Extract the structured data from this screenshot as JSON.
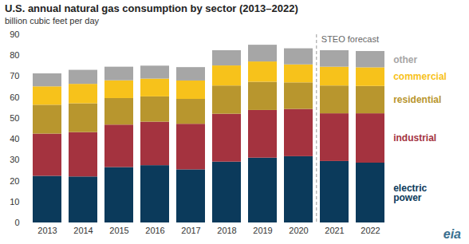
{
  "chart_data": {
    "type": "bar",
    "title": "U.S. annual natural gas consumption by sector (2013–2022)",
    "subtitle": "billion cubic feet per day",
    "categories": [
      "2013",
      "2014",
      "2015",
      "2016",
      "2017",
      "2018",
      "2019",
      "2020",
      "2021",
      "2022"
    ],
    "series": [
      {
        "name": "electric power",
        "color": "#0b3a5b",
        "values": [
          22.3,
          22.0,
          26.5,
          27.4,
          25.4,
          29.1,
          31.0,
          31.7,
          29.4,
          28.6
        ]
      },
      {
        "name": "industrial",
        "color": "#a4333f",
        "values": [
          20.2,
          21.2,
          20.3,
          20.8,
          21.8,
          22.9,
          22.8,
          22.6,
          22.8,
          23.6
        ]
      },
      {
        "name": "residential",
        "color": "#b8962e",
        "values": [
          13.8,
          13.8,
          12.7,
          12.1,
          11.9,
          13.5,
          13.5,
          12.7,
          13.3,
          13.1
        ]
      },
      {
        "name": "commercial",
        "color": "#f7c21b",
        "values": [
          8.8,
          9.3,
          8.5,
          8.5,
          8.8,
          9.6,
          9.7,
          8.6,
          9.0,
          8.9
        ]
      },
      {
        "name": "other",
        "color": "#a6a6a6",
        "values": [
          6.2,
          6.7,
          6.5,
          6.2,
          6.4,
          7.3,
          8.0,
          7.7,
          7.9,
          7.8
        ]
      }
    ],
    "stacked": true,
    "ylim": [
      0,
      90
    ],
    "yticks": [
      0,
      10,
      20,
      30,
      40,
      50,
      60,
      70,
      80,
      90
    ],
    "grid": false,
    "legend": "right",
    "annotation": {
      "text": "STEO forecast",
      "category": "2021"
    },
    "source": "eia"
  }
}
